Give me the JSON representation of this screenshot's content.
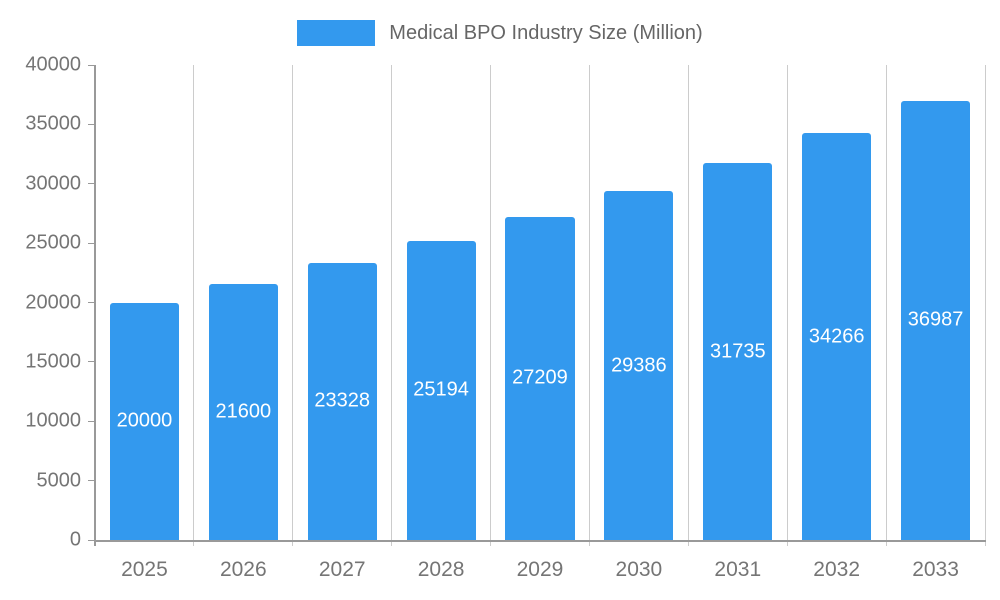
{
  "chart_data": {
    "type": "bar",
    "title": "Medical BPO Industry Size (Million)",
    "categories": [
      "2025",
      "2026",
      "2027",
      "2028",
      "2029",
      "2030",
      "2031",
      "2032",
      "2033"
    ],
    "values": [
      20000,
      21600,
      23328,
      25194,
      27209,
      29386,
      31735,
      34266,
      36987
    ],
    "xlabel": "",
    "ylabel": "",
    "ylim": [
      0,
      40000
    ],
    "ytick_step": 5000,
    "ytick_labels": [
      "0",
      "5000",
      "10000",
      "15000",
      "20000",
      "25000",
      "30000",
      "35000",
      "40000"
    ],
    "grid": "vertical-only",
    "legend_position": "top-center",
    "data_labels": "inside-vertical-center-white"
  },
  "colors": {
    "bar": "#3399EE",
    "axis_text": "#757575",
    "grid_line": "#CCCCCC",
    "axis_line": "#999999",
    "value_label_text": "#FFFFFF",
    "background": "#FFFFFF"
  }
}
